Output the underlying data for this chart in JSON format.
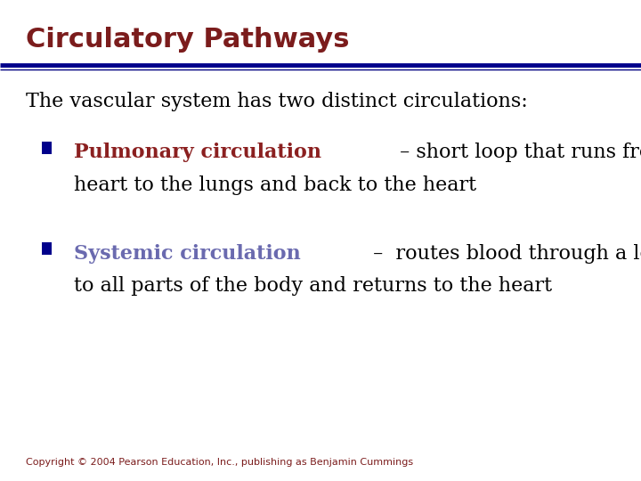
{
  "title": "Circulatory Pathways",
  "title_color": "#7B1C1C",
  "title_fontsize": 22,
  "line_color_thick": "#00008B",
  "line_color_thin": "#000080",
  "bg_color": "#FFFFFF",
  "body_text": "The vascular system has two distinct circulations:",
  "body_fontsize": 16,
  "body_color": "#000000",
  "bullet_color": "#00008B",
  "bullet1_term": "Pulmonary circulation",
  "bullet1_term_color": "#8B2020",
  "bullet1_line1_rest": " – short loop that runs from the",
  "bullet1_line2": "heart to the lungs and back to the heart",
  "bullet1_fontsize": 16,
  "bullet2_term": "Systemic circulation",
  "bullet2_term_color": "#6A6AAF",
  "bullet2_line1_rest": " –  routes blood through a long loop",
  "bullet2_line2": "to all parts of the body and returns to the heart",
  "bullet2_fontsize": 16,
  "copyright": "Copyright © 2004 Pearson Education, Inc., publishing as Benjamin Cummings",
  "copyright_color": "#7B1C1C",
  "copyright_fontsize": 8
}
